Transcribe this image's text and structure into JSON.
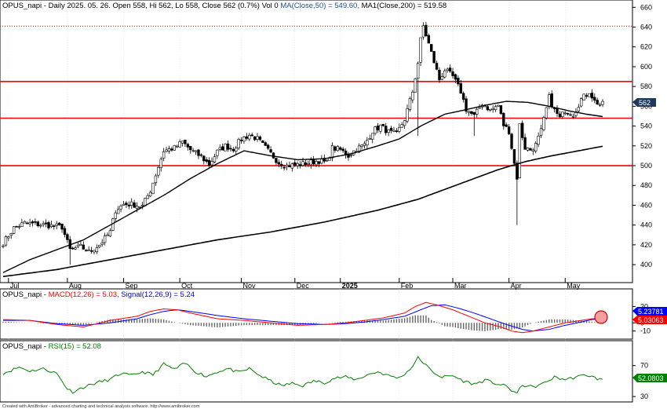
{
  "footer": "Created with AmiBroker - advanced charting and technical analysis software. http://www.amibroker.com",
  "colors": {
    "up": "#ffffff",
    "down": "#000000",
    "ma50": "#000000",
    "ma200": "#000000",
    "hline": "#ff0000",
    "macd": "#ff0000",
    "signal": "#0000ff",
    "rsi": "#008000",
    "grid": "#dddddd",
    "price_badge": "#1f3a5f",
    "macd_badge": "#0000ff",
    "signal_badge": "#ff0000",
    "rsi_badge": "#008000"
  },
  "price_panel": {
    "title_prefix": "OPUS_napi - Daily 2025. 05. 26. Open 558, Hi 562, Lo 558, Close 562 (0.7%) Vol 0",
    "ma50_label": "MA(Close,50) = 549.60,",
    "ma200_label": "MA1(Close,200) = 519.58",
    "last_price": "562"
  },
  "macd_panel": {
    "title_prefix": "OPUS_napi -",
    "macd_label": "MACD(12,26) = 5.03,",
    "signal_label": "Signal(12,26,9) = 5.24",
    "macd_value_badge": "5.03063",
    "signal_value_badge": "5.23781"
  },
  "rsi_panel": {
    "title_prefix": "OPUS_napi -",
    "rsi_label": "RSI(15) = 52.08",
    "rsi_value_badge": "52.0803"
  },
  "chart_data": [
    {
      "type": "candlestick",
      "title": "OPUS_napi - Daily",
      "ylim": [
        385,
        665
      ],
      "yticks": [
        400,
        420,
        440,
        460,
        480,
        500,
        520,
        540,
        560,
        580,
        600,
        620,
        640,
        660
      ],
      "xticks": [
        {
          "label": "Jul",
          "i": 2
        },
        {
          "label": "Aug",
          "i": 24
        },
        {
          "label": "Sep",
          "i": 45
        },
        {
          "label": "Oct",
          "i": 66
        },
        {
          "label": "Nov",
          "i": 89
        },
        {
          "label": "Dec",
          "i": 109
        },
        {
          "label": "2025",
          "i": 126
        },
        {
          "label": "Feb",
          "i": 148
        },
        {
          "label": "Mar",
          "i": 168
        },
        {
          "label": "Apr",
          "i": 189
        },
        {
          "label": "May",
          "i": 210
        }
      ],
      "horizontal_lines": [
        {
          "y": 641,
          "style": "dotted"
        },
        {
          "y": 585,
          "style": "solid"
        },
        {
          "y": 548,
          "style": "solid"
        },
        {
          "y": 500,
          "style": "solid"
        }
      ],
      "anchors": [
        [
          0,
          422
        ],
        [
          4,
          437
        ],
        [
          8,
          442
        ],
        [
          12,
          441
        ],
        [
          16,
          440
        ],
        [
          22,
          438
        ],
        [
          25,
          415
        ],
        [
          29,
          418
        ],
        [
          32,
          413
        ],
        [
          36,
          420
        ],
        [
          40,
          433
        ],
        [
          42,
          455
        ],
        [
          45,
          461
        ],
        [
          48,
          461
        ],
        [
          52,
          459
        ],
        [
          55,
          475
        ],
        [
          58,
          499
        ],
        [
          60,
          515
        ],
        [
          64,
          518
        ],
        [
          67,
          524
        ],
        [
          70,
          516
        ],
        [
          74,
          509
        ],
        [
          77,
          501
        ],
        [
          80,
          514
        ],
        [
          83,
          520
        ],
        [
          86,
          517
        ],
        [
          89,
          527
        ],
        [
          92,
          531
        ],
        [
          95,
          527
        ],
        [
          99,
          515
        ],
        [
          103,
          503
        ],
        [
          106,
          500
        ],
        [
          110,
          501
        ],
        [
          114,
          503
        ],
        [
          118,
          505
        ],
        [
          121,
          503
        ],
        [
          123,
          518
        ],
        [
          126,
          516
        ],
        [
          129,
          510
        ],
        [
          132,
          517
        ],
        [
          135,
          521
        ],
        [
          138,
          535
        ],
        [
          141,
          540
        ],
        [
          144,
          534
        ],
        [
          147,
          532
        ],
        [
          150,
          547
        ],
        [
          153,
          575
        ],
        [
          155,
          604
        ],
        [
          156,
          627
        ],
        [
          157,
          641
        ],
        [
          159,
          623
        ],
        [
          161,
          605
        ],
        [
          163,
          587
        ],
        [
          165,
          597
        ],
        [
          168,
          590
        ],
        [
          171,
          575
        ],
        [
          173,
          557
        ],
        [
          176,
          550
        ],
        [
          179,
          563
        ],
        [
          182,
          556
        ],
        [
          185,
          561
        ],
        [
          187,
          541
        ],
        [
          189,
          535
        ],
        [
          191,
          502
        ],
        [
          192,
          488
        ],
        [
          193,
          541
        ],
        [
          195,
          518
        ],
        [
          197,
          516
        ],
        [
          199,
          521
        ],
        [
          201,
          535
        ],
        [
          204,
          569
        ],
        [
          206,
          556
        ],
        [
          208,
          548
        ],
        [
          210,
          556
        ],
        [
          213,
          552
        ],
        [
          216,
          567
        ],
        [
          219,
          575
        ],
        [
          221,
          565
        ],
        [
          223,
          562
        ]
      ],
      "spikes": [
        [
          25,
          400
        ],
        [
          192,
          440
        ],
        [
          193,
          502
        ],
        [
          155,
          530
        ],
        [
          176,
          530
        ]
      ],
      "ma50_points": [
        [
          0,
          392
        ],
        [
          10,
          405
        ],
        [
          20,
          415
        ],
        [
          30,
          425
        ],
        [
          40,
          440
        ],
        [
          50,
          455
        ],
        [
          60,
          470
        ],
        [
          70,
          487
        ],
        [
          80,
          502
        ],
        [
          90,
          515
        ],
        [
          100,
          510
        ],
        [
          110,
          506
        ],
        [
          120,
          507
        ],
        [
          130,
          512
        ],
        [
          140,
          520
        ],
        [
          148,
          527
        ],
        [
          156,
          540
        ],
        [
          165,
          552
        ],
        [
          172,
          556
        ],
        [
          180,
          561
        ],
        [
          188,
          565
        ],
        [
          196,
          564
        ],
        [
          204,
          560
        ],
        [
          212,
          555
        ],
        [
          218,
          552
        ],
        [
          224,
          549.6
        ]
      ],
      "ma200_points": [
        [
          0,
          388
        ],
        [
          20,
          395
        ],
        [
          40,
          405
        ],
        [
          60,
          415
        ],
        [
          80,
          425
        ],
        [
          100,
          433
        ],
        [
          120,
          443
        ],
        [
          140,
          455
        ],
        [
          155,
          466
        ],
        [
          165,
          476
        ],
        [
          175,
          486
        ],
        [
          185,
          496
        ],
        [
          195,
          504
        ],
        [
          205,
          510
        ],
        [
          215,
          515
        ],
        [
          224,
          519.6
        ]
      ]
    },
    {
      "type": "line",
      "title": "MACD(12,26)",
      "ylim": [
        -18,
        30
      ],
      "yticks": [
        20,
        0,
        -10
      ],
      "series": [
        {
          "name": "MACD(12,26)",
          "points": [
            [
              0,
              4
            ],
            [
              10,
              3
            ],
            [
              20,
              -2
            ],
            [
              30,
              -5
            ],
            [
              40,
              3
            ],
            [
              50,
              8
            ],
            [
              55,
              14
            ],
            [
              60,
              17
            ],
            [
              65,
              16
            ],
            [
              70,
              12
            ],
            [
              80,
              5
            ],
            [
              90,
              3
            ],
            [
              100,
              0
            ],
            [
              110,
              -3
            ],
            [
              120,
              -2
            ],
            [
              128,
              0
            ],
            [
              135,
              3
            ],
            [
              142,
              6
            ],
            [
              150,
              12
            ],
            [
              154,
              20
            ],
            [
              158,
              25
            ],
            [
              162,
              22
            ],
            [
              168,
              16
            ],
            [
              174,
              8
            ],
            [
              180,
              0
            ],
            [
              186,
              -5
            ],
            [
              190,
              -10
            ],
            [
              194,
              -12
            ],
            [
              198,
              -10
            ],
            [
              204,
              -5
            ],
            [
              210,
              0
            ],
            [
              216,
              3
            ],
            [
              220,
              5
            ],
            [
              224,
              5.03
            ]
          ]
        },
        {
          "name": "Signal(12,26,9)",
          "points": [
            [
              0,
              3
            ],
            [
              10,
              3
            ],
            [
              20,
              -1
            ],
            [
              30,
              -3
            ],
            [
              40,
              0
            ],
            [
              50,
              5
            ],
            [
              55,
              10
            ],
            [
              60,
              14
            ],
            [
              65,
              16
            ],
            [
              70,
              14
            ],
            [
              80,
              9
            ],
            [
              90,
              5
            ],
            [
              100,
              2
            ],
            [
              110,
              -1
            ],
            [
              120,
              -2
            ],
            [
              128,
              -1
            ],
            [
              135,
              1
            ],
            [
              142,
              4
            ],
            [
              150,
              8
            ],
            [
              156,
              16
            ],
            [
              160,
              21
            ],
            [
              165,
              22
            ],
            [
              170,
              18
            ],
            [
              176,
              12
            ],
            [
              182,
              5
            ],
            [
              188,
              -2
            ],
            [
              194,
              -8
            ],
            [
              198,
              -10
            ],
            [
              204,
              -8
            ],
            [
              210,
              -3
            ],
            [
              216,
              1
            ],
            [
              220,
              4
            ],
            [
              224,
              5.24
            ]
          ]
        }
      ]
    },
    {
      "type": "line",
      "title": "RSI(15)",
      "ylim": [
        25,
        88
      ],
      "yticks": [
        70,
        30
      ],
      "series": [
        {
          "name": "RSI(15)",
          "points": [
            [
              0,
              60
            ],
            [
              6,
              68
            ],
            [
              10,
              63
            ],
            [
              15,
              66
            ],
            [
              20,
              60
            ],
            [
              24,
              40
            ],
            [
              26,
              36
            ],
            [
              30,
              42
            ],
            [
              35,
              48
            ],
            [
              40,
              52
            ],
            [
              44,
              60
            ],
            [
              48,
              57
            ],
            [
              52,
              62
            ],
            [
              56,
              58
            ],
            [
              60,
              72
            ],
            [
              64,
              65
            ],
            [
              68,
              73
            ],
            [
              72,
              62
            ],
            [
              76,
              56
            ],
            [
              80,
              62
            ],
            [
              84,
              66
            ],
            [
              88,
              61
            ],
            [
              92,
              66
            ],
            [
              96,
              57
            ],
            [
              100,
              50
            ],
            [
              104,
              44
            ],
            [
              108,
              47
            ],
            [
              112,
              44
            ],
            [
              116,
              50
            ],
            [
              120,
              48
            ],
            [
              124,
              54
            ],
            [
              128,
              55
            ],
            [
              132,
              52
            ],
            [
              136,
              58
            ],
            [
              140,
              62
            ],
            [
              144,
              57
            ],
            [
              148,
              54
            ],
            [
              152,
              65
            ],
            [
              155,
              80
            ],
            [
              157,
              74
            ],
            [
              160,
              63
            ],
            [
              164,
              55
            ],
            [
              168,
              57
            ],
            [
              172,
              50
            ],
            [
              176,
              46
            ],
            [
              180,
              51
            ],
            [
              184,
              47
            ],
            [
              188,
              43
            ],
            [
              190,
              38
            ],
            [
              192,
              34
            ],
            [
              194,
              45
            ],
            [
              198,
              42
            ],
            [
              202,
              47
            ],
            [
              206,
              55
            ],
            [
              210,
              52
            ],
            [
              214,
              55
            ],
            [
              218,
              58
            ],
            [
              222,
              53
            ],
            [
              224,
              52.08
            ]
          ]
        }
      ]
    }
  ]
}
